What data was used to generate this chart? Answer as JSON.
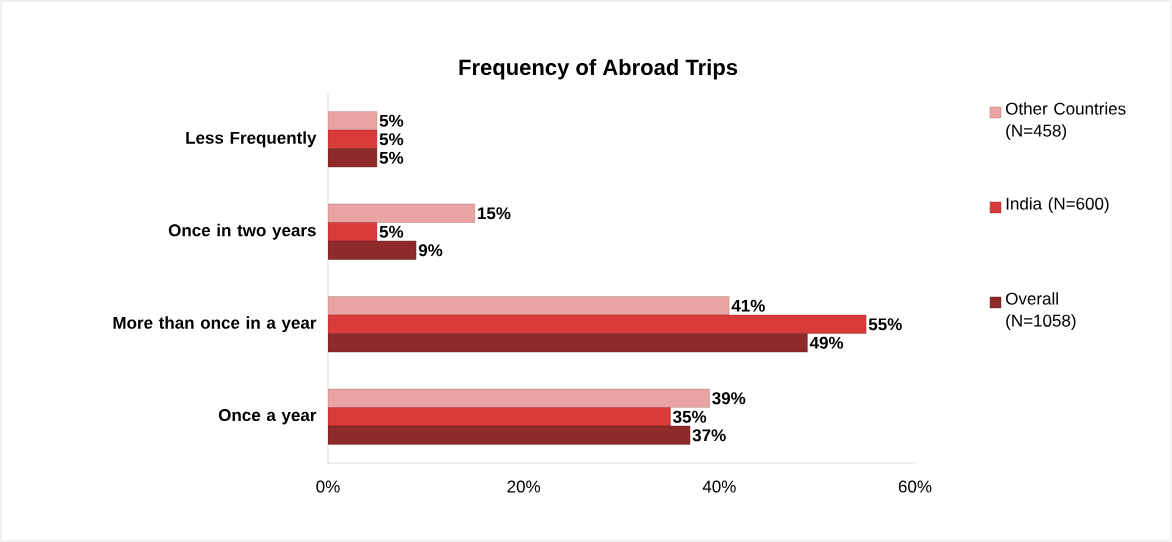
{
  "chart_data": {
    "type": "bar",
    "orientation": "horizontal",
    "title": "Frequency of Abroad Trips",
    "categories": [
      "Less Frequently",
      "Once in two years",
      "More than once in a year",
      "Once a year"
    ],
    "series": [
      {
        "name": "Other Countries (N=458)",
        "color": "#e9a3a3",
        "values": [
          5,
          15,
          41,
          39
        ],
        "value_labels": [
          "5%",
          "15%",
          "41%",
          "39%"
        ]
      },
      {
        "name": "India (N=600)",
        "color": "#d93a3a",
        "values": [
          5,
          5,
          55,
          35
        ],
        "value_labels": [
          "5%",
          "5%",
          "55%",
          "35%"
        ]
      },
      {
        "name": "Overall (N=1058)",
        "color": "#8e2a2a",
        "values": [
          5,
          9,
          49,
          37
        ],
        "value_labels": [
          "5%",
          "9%",
          "49%",
          "37%"
        ]
      }
    ],
    "xlim": [
      0,
      60
    ],
    "xticks": [
      {
        "value": 0,
        "label": "0%"
      },
      {
        "value": 20,
        "label": "20%"
      },
      {
        "value": 40,
        "label": "40%"
      },
      {
        "value": 60,
        "label": "60%"
      }
    ],
    "legend": "right"
  }
}
